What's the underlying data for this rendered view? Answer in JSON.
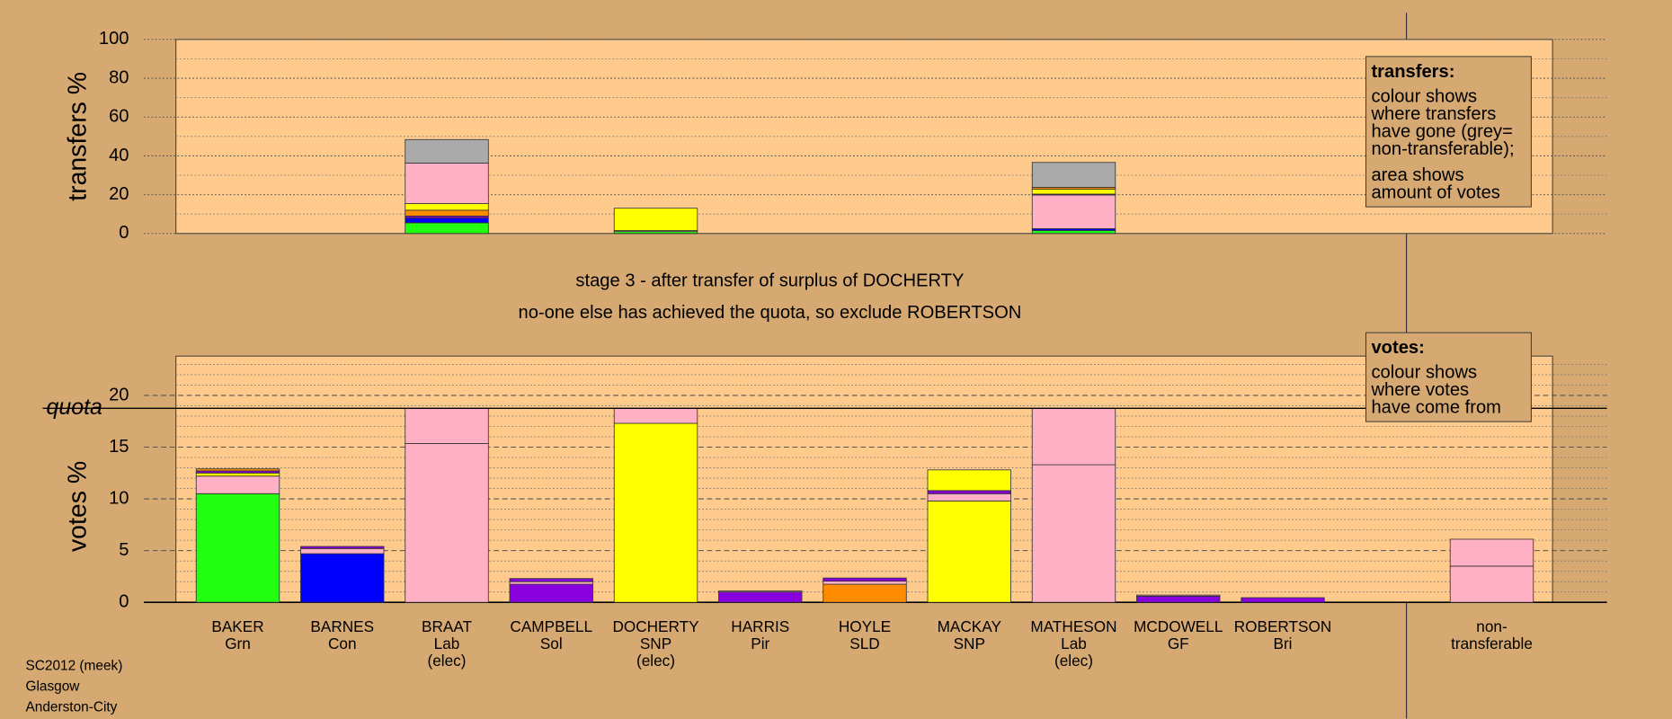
{
  "chart_data": [
    {
      "type": "bar",
      "stacked": true,
      "ylabel": "transfers %",
      "ylim": [
        0,
        100
      ],
      "yticks": [
        0,
        20,
        40,
        60,
        80,
        100
      ],
      "minor_yticks": [
        10,
        30,
        50,
        70,
        90
      ],
      "stacks": [
        [],
        [],
        [
          {
            "value": 5.5,
            "color": "#22ff11"
          },
          {
            "value": 2.5,
            "color": "#0000ff"
          },
          {
            "value": 1,
            "color": "#8800dd"
          },
          {
            "value": 3,
            "color": "#ff8c00"
          },
          {
            "value": 3.4,
            "color": "#ffff00"
          },
          {
            "value": 20.9,
            "color": "#ffb0c4"
          },
          {
            "value": 12.1,
            "color": "#aaaaaa"
          }
        ],
        [],
        [
          {
            "value": 1,
            "color": "#22ff11"
          },
          {
            "value": 0.5,
            "color": "#ffb0c4"
          },
          {
            "value": 11.5,
            "color": "#ffff00"
          }
        ],
        [],
        [],
        [],
        [
          {
            "value": 1.5,
            "color": "#22ff11"
          },
          {
            "value": 1,
            "color": "#0000ff"
          },
          {
            "value": 17.3,
            "color": "#ffb0c4"
          },
          {
            "value": 0.5,
            "color": "#8800dd"
          },
          {
            "value": 2.5,
            "color": "#ffff00"
          },
          {
            "value": 1,
            "color": "#ff8c00"
          },
          {
            "value": 12.8,
            "color": "#aaaaaa"
          }
        ],
        [],
        [],
        [],
        []
      ],
      "legend": {
        "title": "transfers:",
        "paragraphs": [
          [
            "colour shows",
            "where transfers",
            "have gone (grey=",
            "non-transferable);"
          ],
          [
            "area shows",
            "amount of votes"
          ]
        ]
      }
    },
    {
      "type": "bar",
      "stacked": true,
      "ylabel": "votes %",
      "ylim": [
        0,
        23.8
      ],
      "yticks": [
        0,
        5,
        10,
        15,
        20
      ],
      "minor_yticks": [
        1,
        2,
        3,
        4,
        6,
        7,
        8,
        9,
        11,
        12,
        13,
        14,
        16,
        17,
        18,
        19,
        21,
        22,
        23
      ],
      "quota": {
        "label": "quota",
        "value": 18.75
      },
      "categories": [
        [
          "BAKER",
          "Grn"
        ],
        [
          "BARNES",
          "Con"
        ],
        [
          "BRAAT",
          "Lab",
          "(elec)"
        ],
        [
          "CAMPBELL",
          "Sol"
        ],
        [
          "DOCHERTY",
          "SNP",
          "(elec)"
        ],
        [
          "HARRIS",
          "Pir"
        ],
        [
          "HOYLE",
          "SLD"
        ],
        [
          "MACKAY",
          "SNP"
        ],
        [
          "MATHESON",
          "Lab",
          "(elec)"
        ],
        [
          "MCDOWELL",
          "GF"
        ],
        [
          "ROBERTSON",
          "Bri"
        ],
        null,
        [
          "non-",
          "transferable"
        ]
      ],
      "stacks": [
        [
          {
            "value": 10.5,
            "color": "#22ff11"
          },
          {
            "value": 1.7,
            "color": "#ffb0c4"
          },
          {
            "value": 0.3,
            "color": "#ffff00"
          },
          {
            "value": 0.2,
            "color": "#8800dd"
          },
          {
            "value": 0.2,
            "color": "#ff8c00"
          }
        ],
        [
          {
            "value": 4.7,
            "color": "#0000ff"
          },
          {
            "value": 0.5,
            "color": "#ffb0c4"
          },
          {
            "value": 0.2,
            "color": "#8800dd"
          }
        ],
        [
          {
            "value": 15.35,
            "color": "#ffb0c4"
          },
          {
            "value": 3.4,
            "color": "#ffb0c4"
          }
        ],
        [
          {
            "value": 1.75,
            "color": "#8800dd"
          },
          {
            "value": 0.25,
            "color": "#ffb0c4"
          },
          {
            "value": 0.3,
            "color": "#8800dd"
          }
        ],
        [
          {
            "value": 17.3,
            "color": "#ffff00"
          },
          {
            "value": 1.45,
            "color": "#ffb0c4"
          }
        ],
        [
          {
            "value": 1,
            "color": "#8800dd"
          },
          {
            "value": 0.1,
            "color": "#ffb0c4"
          }
        ],
        [
          {
            "value": 1.75,
            "color": "#ff8c00"
          },
          {
            "value": 0.3,
            "color": "#ffb0c4"
          },
          {
            "value": 0.3,
            "color": "#8800dd"
          }
        ],
        [
          {
            "value": 9.8,
            "color": "#ffff00"
          },
          {
            "value": 0.7,
            "color": "#ffb0c4"
          },
          {
            "value": 0.3,
            "color": "#8800dd"
          },
          {
            "value": 2,
            "color": "#ffff00"
          }
        ],
        [
          {
            "value": 13.3,
            "color": "#ffb0c4"
          },
          {
            "value": 5.45,
            "color": "#ffb0c4"
          }
        ],
        [
          {
            "value": 0.6,
            "color": "#8800dd"
          },
          {
            "value": 0.1,
            "color": "#ffb0c4"
          }
        ],
        [
          {
            "value": 0.45,
            "color": "#8800dd"
          }
        ],
        [],
        [
          {
            "value": 3.5,
            "color": "#ffb0c4"
          },
          {
            "value": 2.6,
            "color": "#ffb0c4"
          }
        ]
      ],
      "legend": {
        "title": "votes:",
        "paragraphs": [
          [
            "colour shows",
            "where votes",
            "have come from"
          ]
        ]
      }
    }
  ],
  "titles": [
    "stage 3 - after transfer of surplus of DOCHERTY",
    "no-one else has achieved the quota, so exclude ROBERTSON"
  ],
  "footer": [
    "SC2012 (meek)",
    "Glasgow",
    "Anderston-City"
  ]
}
